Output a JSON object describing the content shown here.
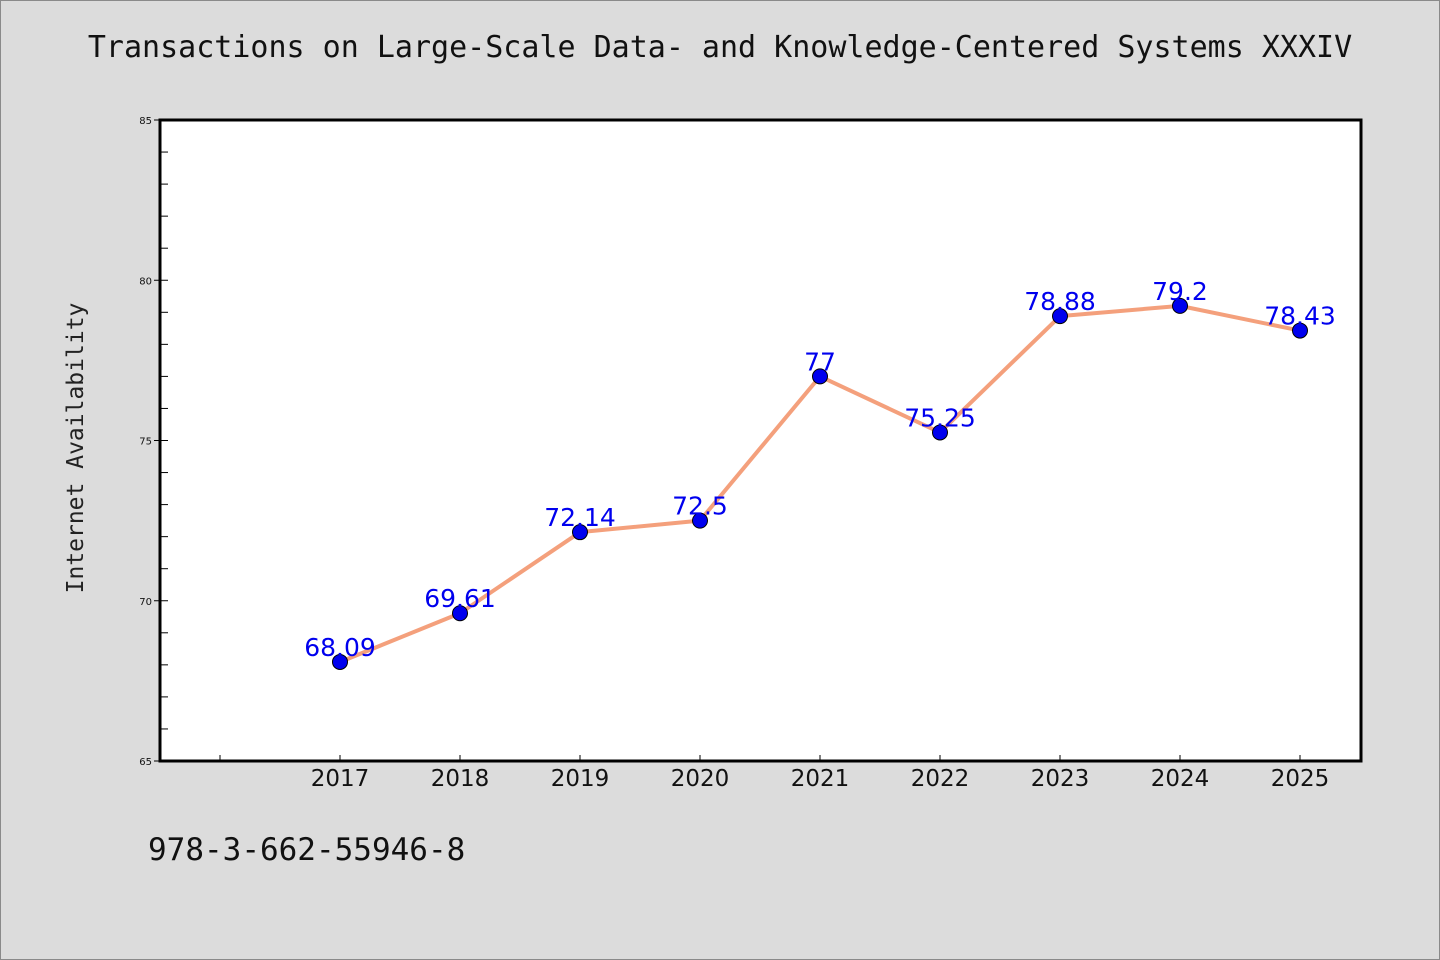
{
  "chart_data": {
    "type": "line",
    "title": "Transactions on Large-Scale Data- and Knowledge-Centered Systems XXXIV",
    "xlabel": "",
    "ylabel": "Internet Availability",
    "categories": [
      "2017",
      "2018",
      "2019",
      "2020",
      "2021",
      "2022",
      "2023",
      "2024",
      "2025"
    ],
    "series": [
      {
        "values": [
          68.09,
          69.61,
          72.14,
          72.5,
          77,
          75.25,
          78.88,
          79.2,
          78.43
        ],
        "labels": [
          "68.09",
          "69.61",
          "72.14",
          "72.5",
          "77",
          "75.25",
          "78.88",
          "79.2",
          "78.43"
        ]
      }
    ],
    "ylim": [
      65,
      85
    ],
    "yticks": [
      "65",
      "70",
      "75",
      "80",
      "85"
    ],
    "grid": false,
    "legend": "none",
    "colors": {
      "line": "#f4a07c",
      "marker": "#0000ee",
      "label": "#0000ee",
      "plot_bg": "#ffffff",
      "page_bg": "#dcdcdc"
    }
  },
  "footer": {
    "isbn": "978-3-662-55946-8"
  }
}
